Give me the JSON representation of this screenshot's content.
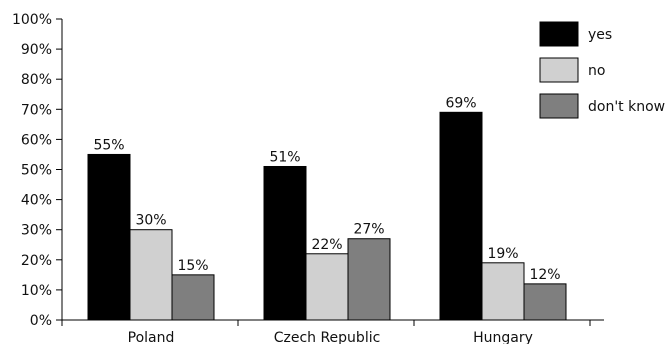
{
  "chart_data": {
    "type": "bar",
    "title": "",
    "xlabel": "",
    "ylabel": "",
    "ylim": [
      0,
      100
    ],
    "yticks": [
      "0%",
      "10%",
      "20%",
      "30%",
      "40%",
      "50%",
      "60%",
      "70%",
      "80%",
      "90%",
      "100%"
    ],
    "categories": [
      "Poland",
      "Czech Republic",
      "Hungary"
    ],
    "series": [
      {
        "name": "yes",
        "color": "#000000",
        "values": [
          55,
          51,
          69
        ],
        "labels": [
          "55%",
          "51%",
          "69%"
        ]
      },
      {
        "name": "no",
        "color": "#d0d0d0",
        "values": [
          30,
          22,
          19
        ],
        "labels": [
          "30%",
          "22%",
          "19%"
        ]
      },
      {
        "name": "don't know",
        "color": "#7f7f7f",
        "values": [
          15,
          27,
          12
        ],
        "labels": [
          "15%",
          "27%",
          "12%"
        ]
      }
    ],
    "legend_position": "top-right",
    "grid": false
  }
}
